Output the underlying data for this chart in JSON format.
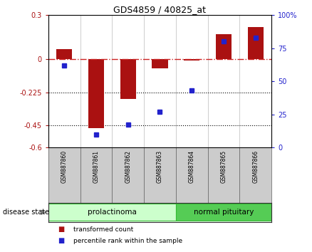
{
  "title": "GDS4859 / 40825_at",
  "samples": [
    "GSM887860",
    "GSM887861",
    "GSM887862",
    "GSM887863",
    "GSM887864",
    "GSM887865",
    "GSM887866"
  ],
  "transformed_count": [
    0.07,
    -0.47,
    -0.27,
    -0.06,
    -0.01,
    0.17,
    0.22
  ],
  "percentile_rank": [
    62,
    10,
    17,
    27,
    43,
    80,
    83
  ],
  "ylim_left": [
    -0.6,
    0.3
  ],
  "ylim_right": [
    0,
    100
  ],
  "yticks_left": [
    0.3,
    0.0,
    -0.225,
    -0.45,
    -0.6
  ],
  "yticks_right": [
    100,
    75,
    50,
    25,
    0
  ],
  "hlines": [
    -0.225,
    -0.45
  ],
  "bar_color": "#aa1111",
  "dot_color": "#2222cc",
  "zero_line_color": "#cc2222",
  "groups": [
    {
      "label": "prolactinoma",
      "start": 0,
      "end": 4,
      "color": "#ccffcc",
      "edge_color": "#33bb33"
    },
    {
      "label": "normal pituitary",
      "start": 4,
      "end": 7,
      "color": "#55cc55",
      "edge_color": "#33bb33"
    }
  ],
  "group_label": "disease state",
  "arrow_color": "#888888",
  "legend_items": [
    {
      "label": "transformed count",
      "color": "#aa1111"
    },
    {
      "label": "percentile rank within the sample",
      "color": "#2222cc"
    }
  ],
  "bg_color": "#ffffff",
  "label_row_color": "#cccccc",
  "label_row_edge": "#888888"
}
